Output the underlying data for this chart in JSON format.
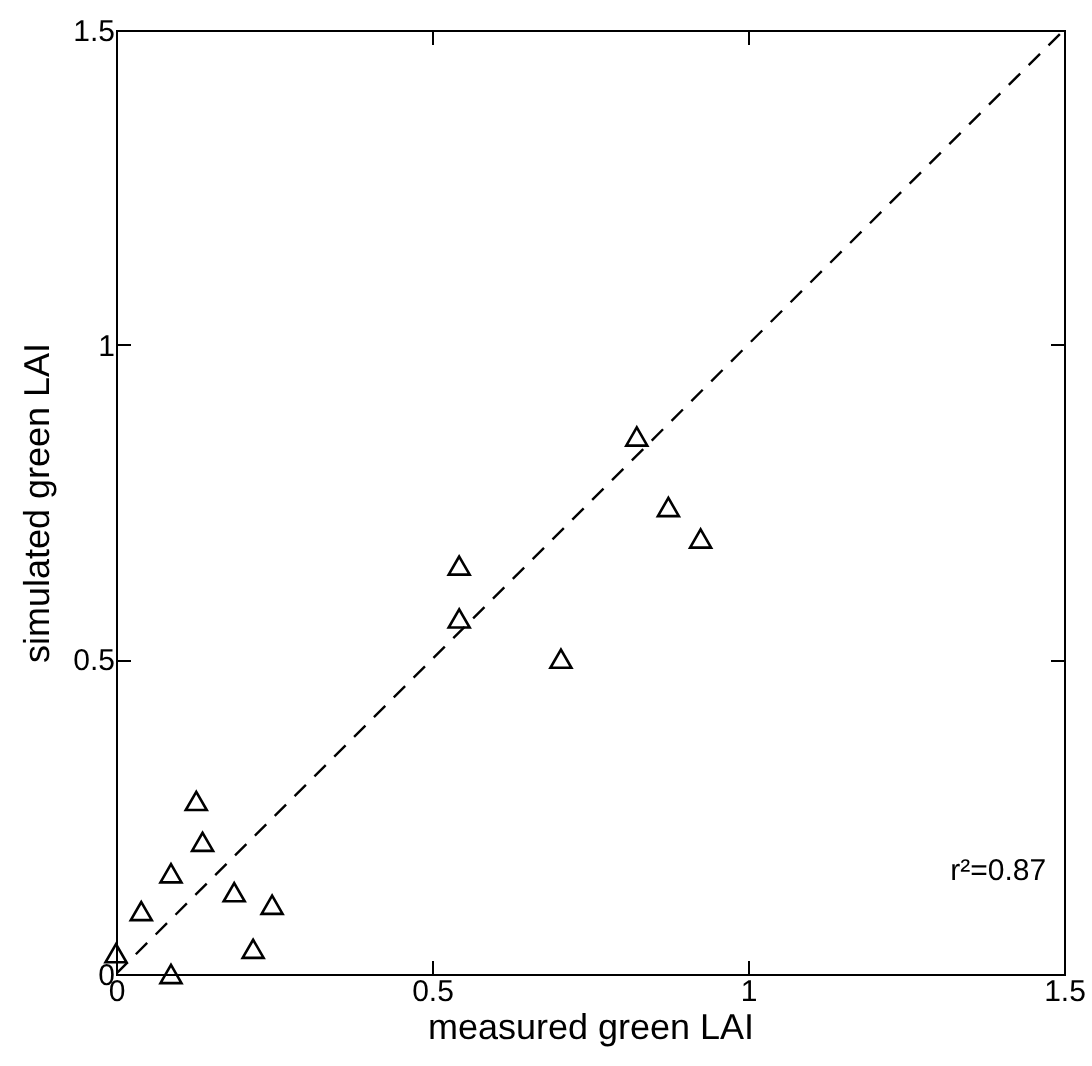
{
  "chart_data": {
    "type": "scatter",
    "xlabel": "measured green LAI",
    "ylabel": "simulated green LAI",
    "marker": "triangle",
    "grid": false,
    "xlim": [
      0,
      1.5
    ],
    "ylim": [
      0,
      1.5
    ],
    "xticks": [
      {
        "value": 0,
        "label": "0"
      },
      {
        "value": 0.5,
        "label": "0.5"
      },
      {
        "value": 1,
        "label": "1"
      },
      {
        "value": 1.5,
        "label": "1.5"
      }
    ],
    "yticks": [
      {
        "value": 0,
        "label": "0"
      },
      {
        "value": 0.5,
        "label": "0.5"
      },
      {
        "value": 1,
        "label": "1"
      },
      {
        "value": 1.5,
        "label": "1.5"
      }
    ],
    "x": [
      0,
      0.04,
      0.087,
      0.127,
      0.137,
      0.087,
      0.187,
      0.247,
      0.217,
      0.824,
      0.874,
      0.925,
      0.543,
      0.543,
      0.704
    ],
    "series": [
      {
        "color": "#000000",
        "values": [
          0.033,
          0.1,
          0.16,
          0.275,
          0.21,
          0,
          0.13,
          0.11,
          0.04,
          0.854,
          0.742,
          0.692,
          0.649,
          0.565,
          0.501
        ]
      },
      {
        "type": "line",
        "line_style": "dashed",
        "marker": "none",
        "color": "#000000",
        "x": [
          0,
          1.5
        ],
        "values": [
          0,
          1.5
        ]
      }
    ],
    "annotations": [
      "r²=0.87"
    ]
  }
}
